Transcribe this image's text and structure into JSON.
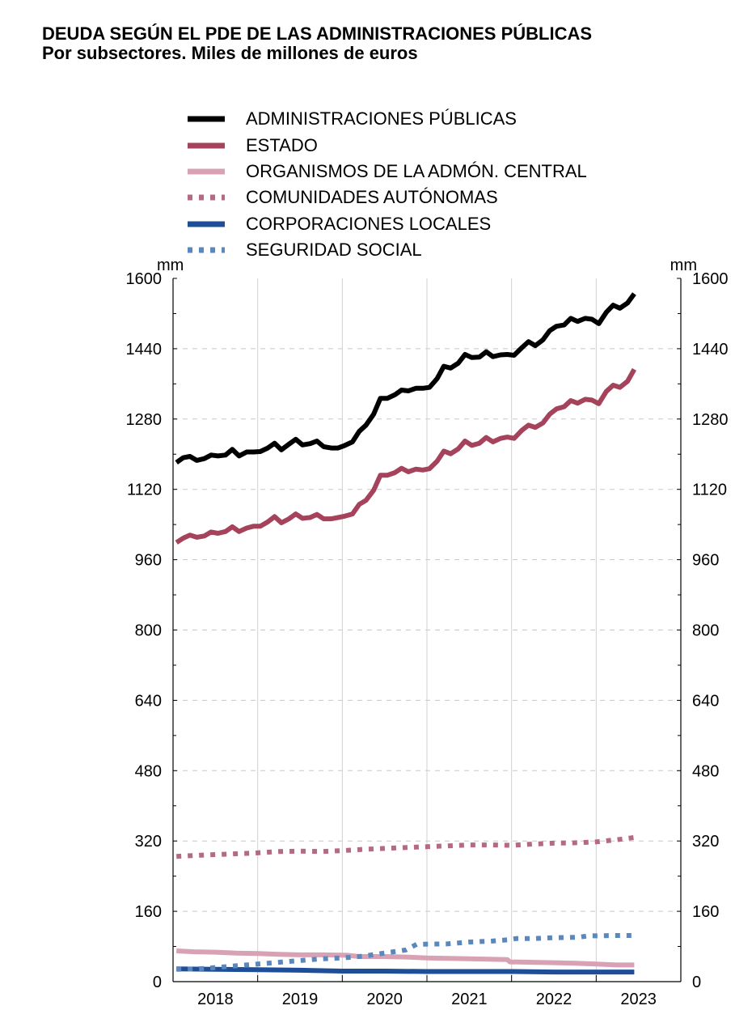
{
  "title": "DEUDA SEGÚN EL PDE DE LAS ADMINISTRACIONES PÚBLICAS",
  "subtitle": "Por subsectores. Miles de millones de euros",
  "chart_data": {
    "type": "line",
    "unit_left": "mm",
    "unit_right": "mm",
    "ylim": [
      0,
      1600
    ],
    "yticks": [
      0,
      160,
      320,
      480,
      640,
      800,
      960,
      1120,
      1280,
      1440,
      1600
    ],
    "xlim": [
      2017.5,
      2023.5
    ],
    "xticks": [
      {
        "label": "2018",
        "pos": 2018
      },
      {
        "label": "2019",
        "pos": 2019
      },
      {
        "label": "2020",
        "pos": 2020
      },
      {
        "label": "2021",
        "pos": 2021
      },
      {
        "label": "2022",
        "pos": 2022
      },
      {
        "label": "2023",
        "pos": 2023
      }
    ],
    "grid": true,
    "legend_position": "top",
    "series": [
      {
        "name": "ADMINISTRACIONES PÚBLICAS",
        "color": "#000000",
        "style": "solid",
        "points": [
          [
            2017.54,
            1181
          ],
          [
            2017.62,
            1192
          ],
          [
            2017.7,
            1195
          ],
          [
            2017.78,
            1186
          ],
          [
            2017.87,
            1190
          ],
          [
            2017.95,
            1198
          ],
          [
            2018.03,
            1196
          ],
          [
            2018.12,
            1198
          ],
          [
            2018.2,
            1211
          ],
          [
            2018.28,
            1196
          ],
          [
            2018.37,
            1205
          ],
          [
            2018.45,
            1205
          ],
          [
            2018.53,
            1206
          ],
          [
            2018.62,
            1214
          ],
          [
            2018.7,
            1225
          ],
          [
            2018.78,
            1210
          ],
          [
            2018.87,
            1223
          ],
          [
            2018.95,
            1234
          ],
          [
            2019.03,
            1221
          ],
          [
            2019.12,
            1224
          ],
          [
            2019.2,
            1230
          ],
          [
            2019.28,
            1217
          ],
          [
            2019.37,
            1214
          ],
          [
            2019.45,
            1214
          ],
          [
            2019.53,
            1220
          ],
          [
            2019.62,
            1228
          ],
          [
            2019.7,
            1252
          ],
          [
            2019.78,
            1266
          ],
          [
            2019.87,
            1291
          ],
          [
            2019.95,
            1327
          ],
          [
            2020.03,
            1327
          ],
          [
            2020.12,
            1335
          ],
          [
            2020.2,
            1346
          ],
          [
            2020.28,
            1344
          ],
          [
            2020.37,
            1350
          ],
          [
            2020.45,
            1350
          ],
          [
            2020.53,
            1352
          ],
          [
            2020.62,
            1372
          ],
          [
            2020.7,
            1400
          ],
          [
            2020.78,
            1396
          ],
          [
            2020.87,
            1407
          ],
          [
            2020.95,
            1427
          ],
          [
            2021.03,
            1420
          ],
          [
            2021.12,
            1421
          ],
          [
            2021.2,
            1433
          ],
          [
            2021.28,
            1422
          ],
          [
            2021.37,
            1426
          ],
          [
            2021.45,
            1427
          ],
          [
            2021.53,
            1425
          ],
          [
            2021.62,
            1442
          ],
          [
            2021.7,
            1456
          ],
          [
            2021.78,
            1447
          ],
          [
            2021.87,
            1460
          ],
          [
            2021.95,
            1481
          ],
          [
            2022.03,
            1491
          ],
          [
            2022.12,
            1494
          ],
          [
            2022.2,
            1509
          ],
          [
            2022.28,
            1502
          ],
          [
            2022.37,
            1509
          ],
          [
            2022.45,
            1507
          ],
          [
            2022.53,
            1497
          ],
          [
            2022.62,
            1523
          ],
          [
            2022.7,
            1539
          ],
          [
            2022.78,
            1532
          ],
          [
            2022.87,
            1544
          ],
          [
            2022.95,
            1565
          ]
        ]
      },
      {
        "name": "ESTADO",
        "color": "#a5435c",
        "style": "solid",
        "points": [
          [
            2017.54,
            999
          ],
          [
            2017.62,
            1009
          ],
          [
            2017.7,
            1016
          ],
          [
            2017.78,
            1011
          ],
          [
            2017.87,
            1014
          ],
          [
            2017.95,
            1023
          ],
          [
            2018.03,
            1020
          ],
          [
            2018.12,
            1024
          ],
          [
            2018.2,
            1035
          ],
          [
            2018.28,
            1024
          ],
          [
            2018.37,
            1032
          ],
          [
            2018.45,
            1036
          ],
          [
            2018.53,
            1036
          ],
          [
            2018.62,
            1046
          ],
          [
            2018.7,
            1058
          ],
          [
            2018.78,
            1044
          ],
          [
            2018.87,
            1053
          ],
          [
            2018.95,
            1064
          ],
          [
            2019.03,
            1054
          ],
          [
            2019.12,
            1056
          ],
          [
            2019.2,
            1063
          ],
          [
            2019.28,
            1053
          ],
          [
            2019.37,
            1053
          ],
          [
            2019.45,
            1056
          ],
          [
            2019.53,
            1059
          ],
          [
            2019.62,
            1064
          ],
          [
            2019.7,
            1086
          ],
          [
            2019.78,
            1095
          ],
          [
            2019.87,
            1118
          ],
          [
            2019.95,
            1152
          ],
          [
            2020.03,
            1152
          ],
          [
            2020.12,
            1158
          ],
          [
            2020.2,
            1168
          ],
          [
            2020.28,
            1160
          ],
          [
            2020.37,
            1166
          ],
          [
            2020.45,
            1164
          ],
          [
            2020.53,
            1167
          ],
          [
            2020.62,
            1184
          ],
          [
            2020.7,
            1207
          ],
          [
            2020.78,
            1201
          ],
          [
            2020.87,
            1212
          ],
          [
            2020.95,
            1230
          ],
          [
            2021.03,
            1220
          ],
          [
            2021.12,
            1225
          ],
          [
            2021.2,
            1238
          ],
          [
            2021.28,
            1228
          ],
          [
            2021.37,
            1236
          ],
          [
            2021.45,
            1239
          ],
          [
            2021.53,
            1236
          ],
          [
            2021.62,
            1254
          ],
          [
            2021.7,
            1266
          ],
          [
            2021.78,
            1261
          ],
          [
            2021.87,
            1271
          ],
          [
            2021.95,
            1291
          ],
          [
            2022.03,
            1303
          ],
          [
            2022.12,
            1308
          ],
          [
            2022.2,
            1322
          ],
          [
            2022.28,
            1316
          ],
          [
            2022.37,
            1325
          ],
          [
            2022.45,
            1323
          ],
          [
            2022.53,
            1315
          ],
          [
            2022.62,
            1343
          ],
          [
            2022.7,
            1357
          ],
          [
            2022.78,
            1352
          ],
          [
            2022.87,
            1366
          ],
          [
            2022.95,
            1393
          ]
        ]
      },
      {
        "name": "ORGANISMOS DE LA ADMÓN. CENTRAL",
        "color": "#d9a1b4",
        "style": "solid",
        "points": [
          [
            2017.54,
            70
          ],
          [
            2017.75,
            68
          ],
          [
            2018.0,
            67
          ],
          [
            2018.25,
            65
          ],
          [
            2018.5,
            64
          ],
          [
            2018.75,
            62
          ],
          [
            2019.0,
            61
          ],
          [
            2019.25,
            61
          ],
          [
            2019.55,
            60
          ],
          [
            2019.7,
            57
          ],
          [
            2020.0,
            57
          ],
          [
            2020.25,
            56
          ],
          [
            2020.5,
            54
          ],
          [
            2020.75,
            53
          ],
          [
            2021.0,
            52
          ],
          [
            2021.45,
            50
          ],
          [
            2021.48,
            45
          ],
          [
            2021.75,
            44
          ],
          [
            2022.0,
            43
          ],
          [
            2022.25,
            42
          ],
          [
            2022.5,
            40
          ],
          [
            2022.75,
            38
          ],
          [
            2022.95,
            38
          ]
        ]
      },
      {
        "name": "COMUNIDADES AUTÓNOMAS",
        "color": "#b56a82",
        "style": "dotted",
        "points": [
          [
            2017.54,
            285
          ],
          [
            2017.75,
            287
          ],
          [
            2018.0,
            289
          ],
          [
            2018.25,
            291
          ],
          [
            2018.5,
            293
          ],
          [
            2018.75,
            296
          ],
          [
            2019.0,
            297
          ],
          [
            2019.25,
            296
          ],
          [
            2019.5,
            298
          ],
          [
            2019.75,
            301
          ],
          [
            2020.0,
            303
          ],
          [
            2020.25,
            305
          ],
          [
            2020.5,
            307
          ],
          [
            2020.75,
            309
          ],
          [
            2021.0,
            311
          ],
          [
            2021.25,
            311
          ],
          [
            2021.5,
            310
          ],
          [
            2021.75,
            313
          ],
          [
            2022.0,
            315
          ],
          [
            2022.25,
            316
          ],
          [
            2022.5,
            318
          ],
          [
            2022.75,
            323
          ],
          [
            2022.95,
            328
          ]
        ]
      },
      {
        "name": "CORPORACIONES LOCALES",
        "color": "#1f4e98",
        "style": "solid",
        "points": [
          [
            2017.54,
            29
          ],
          [
            2018.0,
            28
          ],
          [
            2018.5,
            27
          ],
          [
            2019.0,
            26
          ],
          [
            2019.5,
            24
          ],
          [
            2020.0,
            24
          ],
          [
            2020.5,
            23
          ],
          [
            2021.0,
            23
          ],
          [
            2021.5,
            23
          ],
          [
            2022.0,
            22
          ],
          [
            2022.5,
            22
          ],
          [
            2022.95,
            22
          ]
        ]
      },
      {
        "name": "SEGURIDAD SOCIAL",
        "color": "#5b87bf",
        "style": "dotted",
        "points": [
          [
            2017.54,
            28
          ],
          [
            2017.8,
            29
          ],
          [
            2018.0,
            32
          ],
          [
            2018.25,
            36
          ],
          [
            2018.5,
            40
          ],
          [
            2018.75,
            44
          ],
          [
            2019.0,
            48
          ],
          [
            2019.25,
            52
          ],
          [
            2019.5,
            54
          ],
          [
            2019.75,
            58
          ],
          [
            2020.0,
            65
          ],
          [
            2020.25,
            72
          ],
          [
            2020.38,
            85
          ],
          [
            2020.75,
            86
          ],
          [
            2021.0,
            90
          ],
          [
            2021.25,
            92
          ],
          [
            2021.45,
            95
          ],
          [
            2021.55,
            98
          ],
          [
            2021.75,
            98
          ],
          [
            2022.0,
            100
          ],
          [
            2022.3,
            101
          ],
          [
            2022.4,
            104
          ],
          [
            2022.75,
            105
          ],
          [
            2022.95,
            105
          ]
        ]
      }
    ]
  }
}
